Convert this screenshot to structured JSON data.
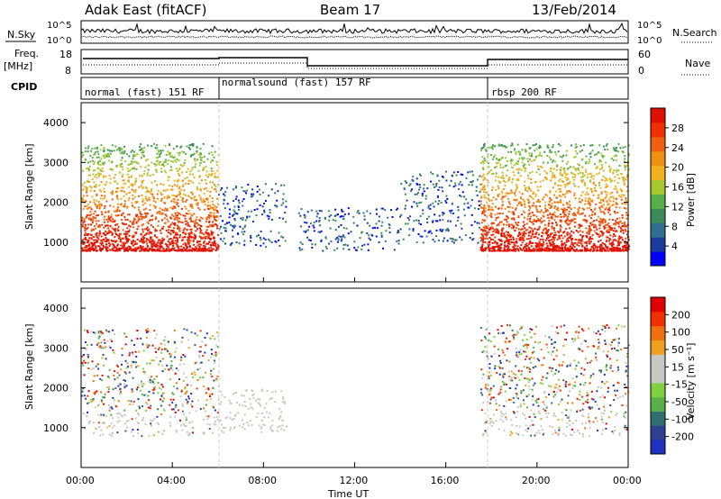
{
  "header": {
    "station": "Adak East (fitACF)",
    "beam": "Beam 17",
    "date": "13/Feb/2014"
  },
  "noise_panel": {
    "left_label": "N.Sky",
    "right_label": "N.Search",
    "tick_top": "10^5",
    "tick_bottom": "10^0"
  },
  "freq_panel": {
    "label_line1": "Freq.",
    "label_line2": "[MHz]",
    "right_label": "Nave",
    "left_ticks": [
      "18",
      "8"
    ],
    "right_ticks": [
      "60",
      "0"
    ]
  },
  "cpid": {
    "label": "CPID",
    "modes": [
      {
        "name": "normal (fast) 151 RF",
        "start_h": 0,
        "end_h": 6
      },
      {
        "name": "normalsound (fast) 157 RF",
        "start_h": 6,
        "end_h": 18
      },
      {
        "name": "rbsp 200 RF",
        "start_h": 18,
        "end_h": 24
      }
    ]
  },
  "axes": {
    "ylabel": "Slant Range [km]",
    "yticks": [
      "4000",
      "3000",
      "2000",
      "1000"
    ],
    "xlabel": "Time UT",
    "xticks": [
      "00:00",
      "04:00",
      "08:00",
      "12:00",
      "16:00",
      "20:00",
      "00:00"
    ]
  },
  "power_colorbar": {
    "label": "Power [dB]",
    "ticks": [
      "28",
      "24",
      "20",
      "16",
      "12",
      "8",
      "4"
    ],
    "colors": [
      "#0000ff",
      "#1a3c9a",
      "#2f6f8f",
      "#3a8a5a",
      "#58b048",
      "#a8c830",
      "#f0b020",
      "#f09010",
      "#f06010",
      "#f03000",
      "#e01000"
    ]
  },
  "velocity_colorbar": {
    "label": "Velocity [m s⁻¹]",
    "ticks": [
      "200",
      "100",
      "50",
      "15",
      "-15",
      "-50",
      "-100",
      "-200"
    ],
    "colors": [
      "#2030c0",
      "#304090",
      "#2f6f6f",
      "#58b048",
      "#80d040",
      "#c8c8c0",
      "#c8c8c0",
      "#f0a020",
      "#f07010",
      "#f03000",
      "#e00000"
    ]
  },
  "chart_data": [
    {
      "type": "heatmap",
      "title": "Power",
      "x_range_hours": [
        0,
        24
      ],
      "ylim": [
        0,
        4500
      ],
      "regions": [
        {
          "t0": 0,
          "t1": 6,
          "r0": 800,
          "r1": 3500,
          "level": "high"
        },
        {
          "t0": 6,
          "t1": 9,
          "r0": 900,
          "r1": 2500,
          "level": "low"
        },
        {
          "t0": 9.5,
          "t1": 14,
          "r0": 800,
          "r1": 1900,
          "level": "low"
        },
        {
          "t0": 14,
          "t1": 17.5,
          "r0": 1000,
          "r1": 2800,
          "level": "low"
        },
        {
          "t0": 17.5,
          "t1": 24,
          "r0": 800,
          "r1": 3500,
          "level": "high"
        }
      ]
    },
    {
      "type": "heatmap",
      "title": "Velocity",
      "x_range_hours": [
        0,
        24
      ],
      "ylim": [
        0,
        4500
      ],
      "regions": [
        {
          "t0": 0,
          "t1": 6,
          "r0": 800,
          "r1": 3500,
          "level": "mixed"
        },
        {
          "t0": 6,
          "t1": 9,
          "r0": 900,
          "r1": 2000,
          "level": "ground"
        },
        {
          "t0": 17.5,
          "t1": 24,
          "r0": 800,
          "r1": 3600,
          "level": "mixed"
        }
      ]
    }
  ]
}
